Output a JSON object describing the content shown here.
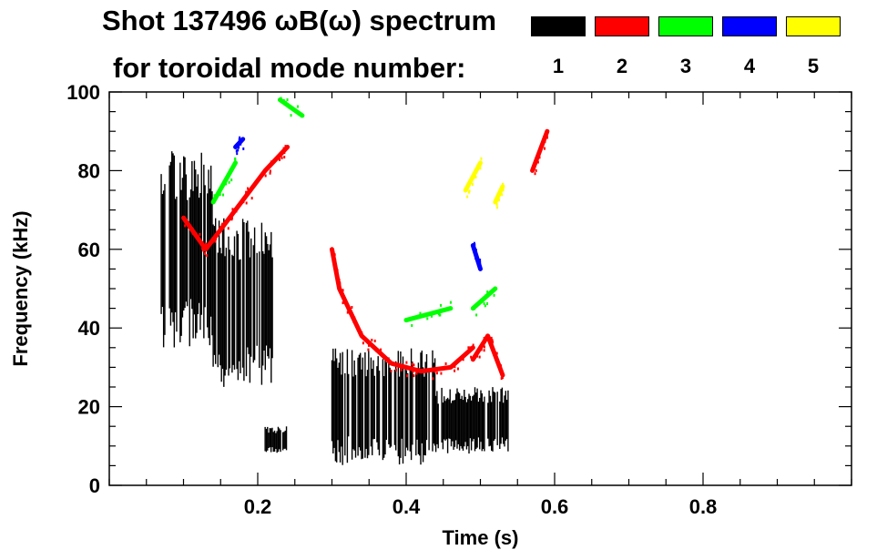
{
  "header": {
    "title_line1": "Shot 137496 ωB(ω) spectrum",
    "title_line2": "for toroidal mode number:"
  },
  "legend": [
    {
      "label": "1",
      "color": "#000000"
    },
    {
      "label": "2",
      "color": "#ff0000"
    },
    {
      "label": "3",
      "color": "#00ff00"
    },
    {
      "label": "4",
      "color": "#0000ff"
    },
    {
      "label": "5",
      "color": "#ffff00"
    }
  ],
  "chart_data": {
    "type": "heatmap",
    "title": "Shot 137496 ωB(ω) spectrum",
    "subtitle": "for toroidal mode number:",
    "xlabel": "Time (s)",
    "ylabel": "Frequency (kHz)",
    "xlim": [
      0.0,
      1.0
    ],
    "ylim": [
      0,
      100
    ],
    "xticks": [
      0.2,
      0.4,
      0.6,
      0.8
    ],
    "xtick_labels": [
      "0.2",
      "0.4",
      "0.6",
      "0.8"
    ],
    "yticks": [
      0,
      20,
      40,
      60,
      80,
      100
    ],
    "ytick_labels": [
      "0",
      "20",
      "40",
      "60",
      "80",
      "100"
    ],
    "grid": false,
    "legend_position": "top-right",
    "series": [
      {
        "name": "1",
        "color": "#000000",
        "regions": [
          {
            "x": [
              0.07,
              0.14
            ],
            "y": [
              35,
              85
            ]
          },
          {
            "x": [
              0.14,
              0.22
            ],
            "y": [
              25,
              68
            ]
          },
          {
            "x": [
              0.21,
              0.24
            ],
            "y": [
              8,
              15
            ]
          },
          {
            "x": [
              0.3,
              0.44
            ],
            "y": [
              5,
              35
            ]
          },
          {
            "x": [
              0.44,
              0.54
            ],
            "y": [
              8,
              25
            ]
          }
        ]
      },
      {
        "name": "2",
        "color": "#ff0000",
        "tracks": [
          {
            "x": [
              0.1,
              0.13,
              0.17,
              0.21,
              0.24
            ],
            "y": [
              68,
              60,
              70,
              80,
              86
            ]
          },
          {
            "x": [
              0.3,
              0.31,
              0.34,
              0.38,
              0.42,
              0.46,
              0.49
            ],
            "y": [
              60,
              50,
              38,
              31,
              29,
              30,
              35
            ]
          },
          {
            "x": [
              0.49,
              0.51,
              0.53
            ],
            "y": [
              32,
              38,
              28
            ]
          },
          {
            "x": [
              0.57,
              0.59
            ],
            "y": [
              80,
              90
            ]
          }
        ]
      },
      {
        "name": "3",
        "color": "#00ff00",
        "tracks": [
          {
            "x": [
              0.14,
              0.17
            ],
            "y": [
              72,
              82
            ]
          },
          {
            "x": [
              0.23,
              0.26
            ],
            "y": [
              98,
              94
            ]
          },
          {
            "x": [
              0.49,
              0.52
            ],
            "y": [
              45,
              50
            ]
          },
          {
            "x": [
              0.4,
              0.46
            ],
            "y": [
              42,
              45
            ]
          }
        ]
      },
      {
        "name": "4",
        "color": "#0000ff",
        "tracks": [
          {
            "x": [
              0.17,
              0.18
            ],
            "y": [
              86,
              88
            ]
          },
          {
            "x": [
              0.49,
              0.5
            ],
            "y": [
              61,
              55
            ]
          }
        ]
      },
      {
        "name": "5",
        "color": "#ffff00",
        "tracks": [
          {
            "x": [
              0.48,
              0.5
            ],
            "y": [
              75,
              82
            ]
          },
          {
            "x": [
              0.52,
              0.53
            ],
            "y": [
              72,
              76
            ]
          }
        ]
      }
    ]
  }
}
